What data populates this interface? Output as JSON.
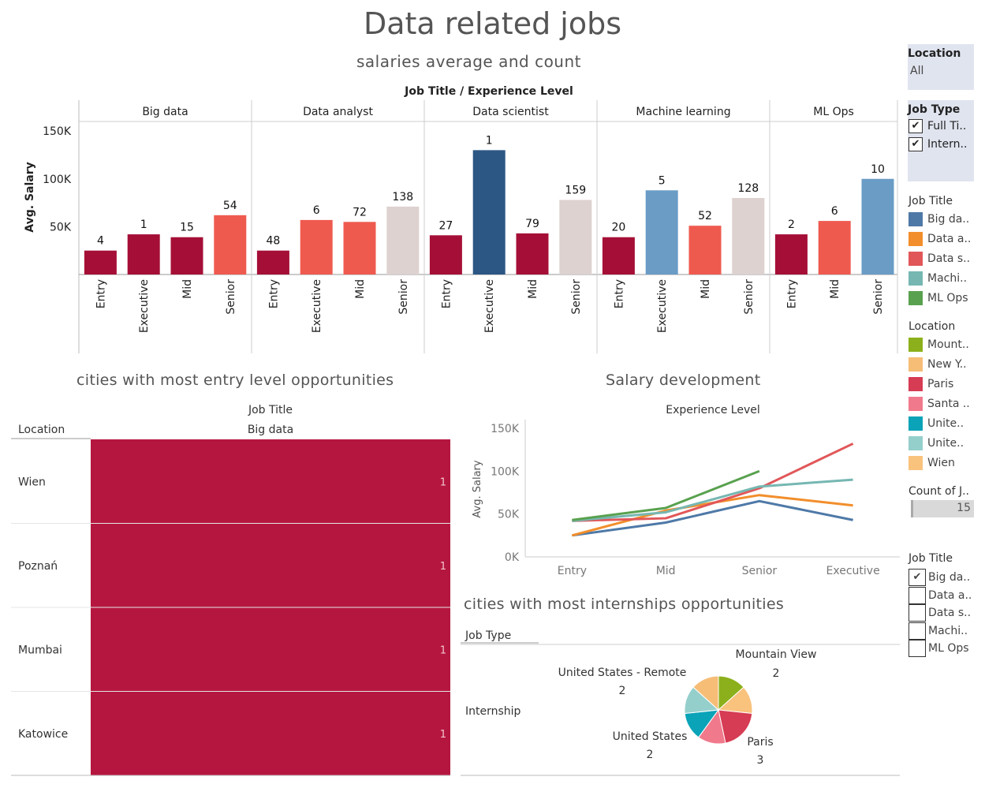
{
  "header": {
    "title": "Data related jobs",
    "subtitle": "salaries average and count"
  },
  "colors": {
    "crimson": "#a50f37",
    "coral": "#ef5a4f",
    "navy": "#2c5684",
    "steel": "#6a9cc6",
    "pale": "#ddd2d0",
    "heat": "#b5163f",
    "filter_bg": "#e0e4ef"
  },
  "chart_data": [
    {
      "type": "bar",
      "header": "Job Title  /  Experience Level",
      "ylabel": "Avg. Salary",
      "ylim": [
        0,
        160000
      ],
      "yticks": [
        {
          "value": 50000,
          "label": "50K"
        },
        {
          "value": 100000,
          "label": "100K"
        },
        {
          "value": 150000,
          "label": "150K"
        }
      ],
      "panes": [
        {
          "name": "Big data",
          "bars": [
            {
              "level": "Entry",
              "value": 25000,
              "count": "4",
              "color": "#a50f37"
            },
            {
              "level": "Executive",
              "value": 42000,
              "count": "1",
              "color": "#a50f37"
            },
            {
              "level": "Mid",
              "value": 39000,
              "count": "15",
              "color": "#a50f37"
            },
            {
              "level": "Senior",
              "value": 62000,
              "count": "54",
              "color": "#ef5a4f"
            }
          ]
        },
        {
          "name": "Data analyst",
          "bars": [
            {
              "level": "Entry",
              "value": 25000,
              "count": "48",
              "color": "#a50f37"
            },
            {
              "level": "Executive",
              "value": 57000,
              "count": "6",
              "color": "#ef5a4f"
            },
            {
              "level": "Mid",
              "value": 55000,
              "count": "72",
              "color": "#ef5a4f"
            },
            {
              "level": "Senior",
              "value": 71000,
              "count": "138",
              "color": "#ddd2d0"
            }
          ]
        },
        {
          "name": "Data scientist",
          "bars": [
            {
              "level": "Entry",
              "value": 41000,
              "count": "27",
              "color": "#a50f37"
            },
            {
              "level": "Executive",
              "value": 130000,
              "count": "1",
              "color": "#2c5684"
            },
            {
              "level": "Mid",
              "value": 43000,
              "count": "79",
              "color": "#a50f37"
            },
            {
              "level": "Senior",
              "value": 78000,
              "count": "159",
              "color": "#ddd2d0"
            }
          ]
        },
        {
          "name": "Machine learning",
          "bars": [
            {
              "level": "Entry",
              "value": 39000,
              "count": "20",
              "color": "#a50f37"
            },
            {
              "level": "Executive",
              "value": 88000,
              "count": "5",
              "color": "#6a9cc6"
            },
            {
              "level": "Mid",
              "value": 51000,
              "count": "52",
              "color": "#ef5a4f"
            },
            {
              "level": "Senior",
              "value": 80000,
              "count": "128",
              "color": "#ddd2d0"
            }
          ]
        },
        {
          "name": "ML Ops",
          "bars": [
            {
              "level": "Entry",
              "value": 42000,
              "count": "2",
              "color": "#a50f37"
            },
            {
              "level": "Mid",
              "value": 56000,
              "count": "6",
              "color": "#ef5a4f"
            },
            {
              "level": "Senior",
              "value": 100000,
              "count": "10",
              "color": "#6a9cc6"
            }
          ]
        }
      ]
    },
    {
      "type": "heatmap",
      "title": "cities with most  entry level opportunities",
      "column_header": "Job Title",
      "column": "Big data",
      "row_header": "Location",
      "rows": [
        {
          "location": "Wien",
          "count": "1"
        },
        {
          "location": "Poznań",
          "count": "1"
        },
        {
          "location": "Mumbai",
          "count": "1"
        },
        {
          "location": "Katowice",
          "count": "1"
        }
      ]
    },
    {
      "type": "line",
      "title": "Salary development",
      "header": "Experience Level",
      "ylabel": "Avg. Salary",
      "categories": [
        "Entry",
        "Mid",
        "Senior",
        "Executive"
      ],
      "ylim": [
        0,
        160000
      ],
      "yticks": [
        {
          "value": 0,
          "label": "0K"
        },
        {
          "value": 50000,
          "label": "50K"
        },
        {
          "value": 100000,
          "label": "100K"
        },
        {
          "value": 150000,
          "label": "150K"
        }
      ],
      "series": [
        {
          "color": "#4e79a7",
          "values": [
            25000,
            40000,
            65000,
            43000
          ]
        },
        {
          "color": "#f28e2b",
          "values": [
            25000,
            54000,
            72000,
            60000
          ]
        },
        {
          "color": "#e15759",
          "values": [
            42000,
            45000,
            80000,
            132000
          ]
        },
        {
          "color": "#76b7b2",
          "values": [
            42000,
            52000,
            82000,
            90000
          ]
        },
        {
          "color": "#59a14f",
          "values": [
            43000,
            57000,
            100000,
            null
          ]
        }
      ]
    },
    {
      "type": "pie",
      "title": "cities with most  internships opportunities",
      "column_header": "Job Type",
      "row": "Internship",
      "slices": [
        {
          "label": "Mountain View",
          "value": 2,
          "color": "#8cb01b"
        },
        {
          "label": "Wien",
          "value": 2,
          "color": "#f9c27d"
        },
        {
          "label": "Paris",
          "value": 3,
          "color": "#d63c53"
        },
        {
          "label": "Santa",
          "value": 2,
          "color": "#f07a8c"
        },
        {
          "label": "United States",
          "value": 2,
          "color": "#0ba3b7"
        },
        {
          "label": "United States - Remote",
          "value": 2,
          "color": "#95cfcc"
        },
        {
          "label": "New York",
          "value": 2,
          "color": "#f6bd77"
        }
      ],
      "labels": [
        {
          "name": "Mountain View",
          "count": "2"
        },
        {
          "name": "United States - Remote",
          "count": "2"
        },
        {
          "name": "United States",
          "count": "2"
        },
        {
          "name": "Paris",
          "count": "3"
        }
      ]
    }
  ],
  "sidebar": {
    "location_filter": {
      "title": "Location",
      "value": "All"
    },
    "job_type_filter": {
      "title": "Job Type",
      "items": [
        {
          "label": "Full Ti..",
          "checked": true
        },
        {
          "label": "Intern..",
          "checked": true
        }
      ]
    },
    "job_title_legend": {
      "title": "Job Title",
      "items": [
        {
          "label": "Big da..",
          "color": "#4e79a7"
        },
        {
          "label": "Data a..",
          "color": "#f28e2b"
        },
        {
          "label": "Data s..",
          "color": "#e15759"
        },
        {
          "label": "Machi..",
          "color": "#76b7b2"
        },
        {
          "label": "ML Ops",
          "color": "#59a14f"
        }
      ]
    },
    "location_legend": {
      "title": "Location",
      "items": [
        {
          "label": "Mount..",
          "color": "#8cb01b"
        },
        {
          "label": "New Y..",
          "color": "#f6bd77"
        },
        {
          "label": "Paris",
          "color": "#d63c53"
        },
        {
          "label": "Santa ..",
          "color": "#f07a8c"
        },
        {
          "label": "Unite..",
          "color": "#0ba3b7"
        },
        {
          "label": "Unite..",
          "color": "#95cfcc"
        },
        {
          "label": "Wien",
          "color": "#f9c27d"
        }
      ]
    },
    "count_filter": {
      "title": "Count of J..",
      "value": "15"
    },
    "job_title_filter": {
      "title": "Job Title",
      "items": [
        {
          "label": "Big da..",
          "checked": true
        },
        {
          "label": "Data a..",
          "checked": false
        },
        {
          "label": "Data s..",
          "checked": false
        },
        {
          "label": "Machi..",
          "checked": false
        },
        {
          "label": "ML Ops",
          "checked": false
        }
      ]
    }
  }
}
